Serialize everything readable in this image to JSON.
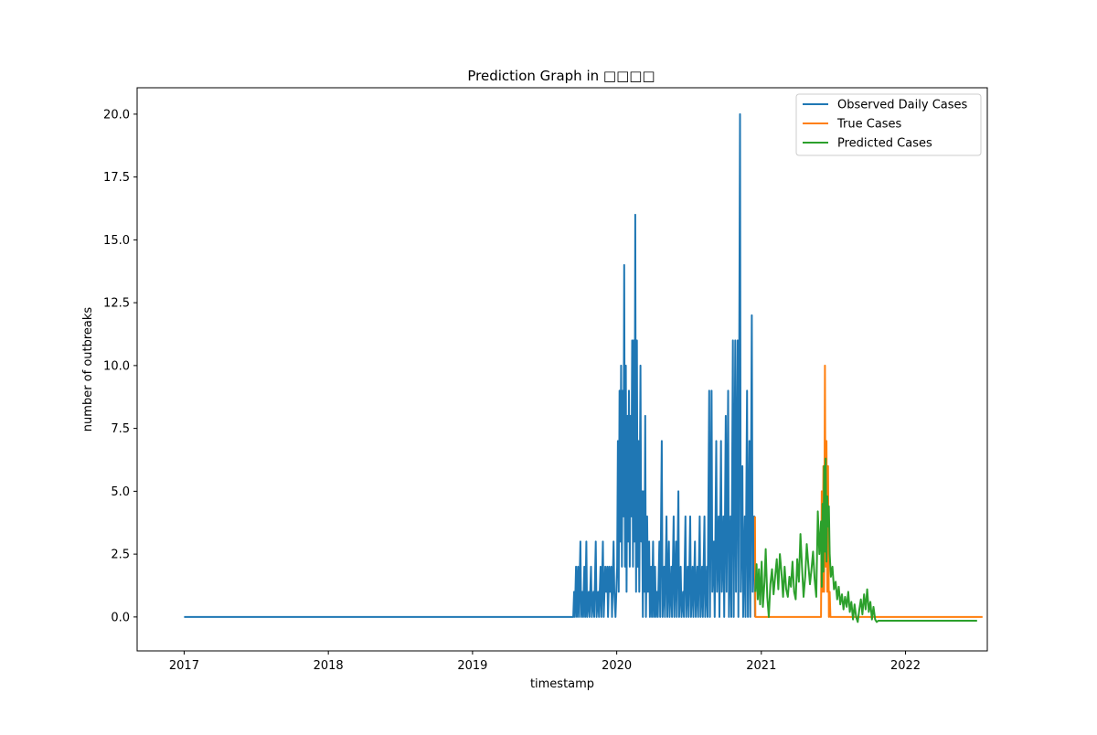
{
  "chart_data": {
    "type": "line",
    "title": "Prediction Graph in □□□□",
    "xlabel": "timestamp",
    "ylabel": "number of outbreaks",
    "xlim": [
      "2016-09-04",
      "2022-07-27"
    ],
    "ylim": [
      -1.35,
      21.05
    ],
    "x_ticks": [
      "2017",
      "2018",
      "2019",
      "2020",
      "2021",
      "2022"
    ],
    "y_ticks": [
      0.0,
      2.5,
      5.0,
      7.5,
      10.0,
      12.5,
      15.0,
      17.5,
      20.0
    ],
    "grid": false,
    "legend_position": "top-right",
    "series": [
      {
        "name": "Observed Daily Cases",
        "color": "#1f77b4",
        "points": [
          [
            "2017-01-01",
            0
          ],
          [
            "2019-09-13",
            0
          ],
          [
            "2019-09-15",
            1
          ],
          [
            "2019-09-17",
            0
          ],
          [
            "2019-09-20",
            2
          ],
          [
            "2019-09-22",
            0
          ],
          [
            "2019-09-25",
            2
          ],
          [
            "2019-09-27",
            0
          ],
          [
            "2019-10-01",
            3
          ],
          [
            "2019-10-03",
            0
          ],
          [
            "2019-10-06",
            1
          ],
          [
            "2019-10-08",
            0
          ],
          [
            "2019-10-11",
            2
          ],
          [
            "2019-10-13",
            0
          ],
          [
            "2019-10-16",
            3
          ],
          [
            "2019-10-18",
            0
          ],
          [
            "2019-10-22",
            1
          ],
          [
            "2019-10-24",
            0
          ],
          [
            "2019-10-28",
            2
          ],
          [
            "2019-10-30",
            0
          ],
          [
            "2019-11-03",
            1
          ],
          [
            "2019-11-05",
            0
          ],
          [
            "2019-11-09",
            3
          ],
          [
            "2019-11-11",
            0
          ],
          [
            "2019-11-15",
            1
          ],
          [
            "2019-11-17",
            0
          ],
          [
            "2019-11-21",
            2
          ],
          [
            "2019-11-23",
            0
          ],
          [
            "2019-11-27",
            3
          ],
          [
            "2019-11-29",
            0
          ],
          [
            "2019-12-03",
            2
          ],
          [
            "2019-12-05",
            1
          ],
          [
            "2019-12-08",
            2
          ],
          [
            "2019-12-10",
            0
          ],
          [
            "2019-12-13",
            2
          ],
          [
            "2019-12-15",
            1
          ],
          [
            "2019-12-18",
            2
          ],
          [
            "2019-12-20",
            0
          ],
          [
            "2019-12-24",
            3
          ],
          [
            "2019-12-26",
            1
          ],
          [
            "2019-12-29",
            0
          ],
          [
            "2020-01-02",
            2
          ],
          [
            "2020-01-04",
            7
          ],
          [
            "2020-01-06",
            1
          ],
          [
            "2020-01-08",
            9
          ],
          [
            "2020-01-10",
            3
          ],
          [
            "2020-01-12",
            10
          ],
          [
            "2020-01-14",
            2
          ],
          [
            "2020-01-16",
            9
          ],
          [
            "2020-01-18",
            4
          ],
          [
            "2020-01-20",
            14
          ],
          [
            "2020-01-22",
            2
          ],
          [
            "2020-01-24",
            10
          ],
          [
            "2020-01-26",
            1
          ],
          [
            "2020-01-28",
            8
          ],
          [
            "2020-01-30",
            3
          ],
          [
            "2020-02-01",
            9
          ],
          [
            "2020-02-03",
            2
          ],
          [
            "2020-02-05",
            8
          ],
          [
            "2020-02-07",
            4
          ],
          [
            "2020-02-09",
            11
          ],
          [
            "2020-02-11",
            2
          ],
          [
            "2020-02-13",
            11
          ],
          [
            "2020-02-15",
            3
          ],
          [
            "2020-02-17",
            16
          ],
          [
            "2020-02-19",
            1
          ],
          [
            "2020-02-21",
            11
          ],
          [
            "2020-02-23",
            2
          ],
          [
            "2020-02-25",
            7
          ],
          [
            "2020-02-27",
            1
          ],
          [
            "2020-03-01",
            10
          ],
          [
            "2020-03-03",
            3
          ],
          [
            "2020-03-05",
            5
          ],
          [
            "2020-03-07",
            0
          ],
          [
            "2020-03-09",
            5
          ],
          [
            "2020-03-11",
            1
          ],
          [
            "2020-03-13",
            8
          ],
          [
            "2020-03-15",
            0
          ],
          [
            "2020-03-18",
            4
          ],
          [
            "2020-03-20",
            1
          ],
          [
            "2020-03-23",
            3
          ],
          [
            "2020-03-25",
            0
          ],
          [
            "2020-03-28",
            2
          ],
          [
            "2020-03-30",
            0
          ],
          [
            "2020-04-02",
            3
          ],
          [
            "2020-04-04",
            0
          ],
          [
            "2020-04-07",
            2
          ],
          [
            "2020-04-09",
            0
          ],
          [
            "2020-04-12",
            1
          ],
          [
            "2020-04-14",
            0
          ],
          [
            "2020-04-18",
            3
          ],
          [
            "2020-04-20",
            0
          ],
          [
            "2020-04-24",
            7
          ],
          [
            "2020-04-26",
            0
          ],
          [
            "2020-04-30",
            2
          ],
          [
            "2020-05-02",
            0
          ],
          [
            "2020-05-06",
            4
          ],
          [
            "2020-05-08",
            0
          ],
          [
            "2020-05-12",
            3
          ],
          [
            "2020-05-14",
            0
          ],
          [
            "2020-05-18",
            2
          ],
          [
            "2020-05-20",
            0
          ],
          [
            "2020-05-24",
            4
          ],
          [
            "2020-05-26",
            0
          ],
          [
            "2020-05-30",
            3
          ],
          [
            "2020-06-01",
            0
          ],
          [
            "2020-06-05",
            5
          ],
          [
            "2020-06-07",
            0
          ],
          [
            "2020-06-11",
            2
          ],
          [
            "2020-06-13",
            0
          ],
          [
            "2020-06-17",
            1
          ],
          [
            "2020-06-19",
            0
          ],
          [
            "2020-06-23",
            4
          ],
          [
            "2020-06-25",
            0
          ],
          [
            "2020-06-29",
            2
          ],
          [
            "2020-07-01",
            0
          ],
          [
            "2020-07-05",
            4
          ],
          [
            "2020-07-07",
            0
          ],
          [
            "2020-07-11",
            2
          ],
          [
            "2020-07-13",
            0
          ],
          [
            "2020-07-17",
            3
          ],
          [
            "2020-07-19",
            0
          ],
          [
            "2020-07-23",
            2
          ],
          [
            "2020-07-25",
            0
          ],
          [
            "2020-07-29",
            4
          ],
          [
            "2020-07-31",
            0
          ],
          [
            "2020-08-04",
            2
          ],
          [
            "2020-08-06",
            0
          ],
          [
            "2020-08-10",
            4
          ],
          [
            "2020-08-12",
            0
          ],
          [
            "2020-08-16",
            2
          ],
          [
            "2020-08-18",
            0
          ],
          [
            "2020-08-22",
            9
          ],
          [
            "2020-08-24",
            0
          ],
          [
            "2020-08-28",
            9
          ],
          [
            "2020-08-30",
            1
          ],
          [
            "2020-09-03",
            3
          ],
          [
            "2020-09-05",
            0
          ],
          [
            "2020-09-09",
            7
          ],
          [
            "2020-09-11",
            1
          ],
          [
            "2020-09-15",
            4
          ],
          [
            "2020-09-17",
            0
          ],
          [
            "2020-09-21",
            7
          ],
          [
            "2020-09-23",
            1
          ],
          [
            "2020-09-27",
            4
          ],
          [
            "2020-09-29",
            0
          ],
          [
            "2020-10-03",
            8
          ],
          [
            "2020-10-05",
            1
          ],
          [
            "2020-10-09",
            9
          ],
          [
            "2020-10-11",
            0
          ],
          [
            "2020-10-15",
            4
          ],
          [
            "2020-10-17",
            0
          ],
          [
            "2020-10-21",
            11
          ],
          [
            "2020-10-23",
            0
          ],
          [
            "2020-10-27",
            11
          ],
          [
            "2020-10-29",
            1
          ],
          [
            "2020-11-02",
            11
          ],
          [
            "2020-11-04",
            0
          ],
          [
            "2020-11-08",
            20
          ],
          [
            "2020-11-10",
            1
          ],
          [
            "2020-11-14",
            6
          ],
          [
            "2020-11-16",
            0
          ],
          [
            "2020-11-20",
            4
          ],
          [
            "2020-11-22",
            0
          ],
          [
            "2020-11-26",
            9
          ],
          [
            "2020-11-28",
            0
          ],
          [
            "2020-12-02",
            7
          ],
          [
            "2020-12-04",
            0
          ],
          [
            "2020-12-08",
            12
          ],
          [
            "2020-12-10",
            1
          ],
          [
            "2020-12-14",
            4
          ],
          [
            "2020-12-16",
            0
          ]
        ]
      },
      {
        "name": "True Cases",
        "color": "#ff7f0e",
        "points": [
          [
            "2020-12-16",
            4
          ],
          [
            "2020-12-17",
            0
          ],
          [
            "2021-06-01",
            0
          ],
          [
            "2021-06-03",
            5
          ],
          [
            "2021-06-05",
            1
          ],
          [
            "2021-06-07",
            6
          ],
          [
            "2021-06-09",
            1
          ],
          [
            "2021-06-11",
            10
          ],
          [
            "2021-06-13",
            2
          ],
          [
            "2021-06-15",
            7
          ],
          [
            "2021-06-17",
            1
          ],
          [
            "2021-06-19",
            6
          ],
          [
            "2021-06-21",
            0
          ],
          [
            "2021-06-23",
            1
          ],
          [
            "2021-06-25",
            0
          ],
          [
            "2022-07-15",
            0
          ]
        ]
      },
      {
        "name": "Predicted Cases",
        "color": "#2ca02c",
        "points": [
          [
            "2020-12-17",
            1.0
          ],
          [
            "2020-12-20",
            2.1
          ],
          [
            "2020-12-23",
            0.7
          ],
          [
            "2020-12-26",
            1.9
          ],
          [
            "2020-12-29",
            0.5
          ],
          [
            "2021-01-02",
            2.2
          ],
          [
            "2021-01-05",
            0.4
          ],
          [
            "2021-01-09",
            1.4
          ],
          [
            "2021-01-12",
            2.7
          ],
          [
            "2021-01-16",
            0.8
          ],
          [
            "2021-01-20",
            0.0
          ],
          [
            "2021-01-24",
            1.3
          ],
          [
            "2021-01-28",
            1.9
          ],
          [
            "2021-02-01",
            0.9
          ],
          [
            "2021-02-05",
            1.6
          ],
          [
            "2021-02-09",
            2.3
          ],
          [
            "2021-02-13",
            1.1
          ],
          [
            "2021-02-17",
            2.5
          ],
          [
            "2021-02-21",
            1.8
          ],
          [
            "2021-02-25",
            0.8
          ],
          [
            "2021-03-01",
            2.0
          ],
          [
            "2021-03-05",
            1.1
          ],
          [
            "2021-03-09",
            0.8
          ],
          [
            "2021-03-13",
            1.6
          ],
          [
            "2021-03-17",
            1.2
          ],
          [
            "2021-03-21",
            2.2
          ],
          [
            "2021-03-25",
            1.0
          ],
          [
            "2021-03-29",
            0.7
          ],
          [
            "2021-04-02",
            2.3
          ],
          [
            "2021-04-06",
            1.4
          ],
          [
            "2021-04-10",
            3.3
          ],
          [
            "2021-04-14",
            2.0
          ],
          [
            "2021-04-18",
            0.8
          ],
          [
            "2021-04-22",
            1.6
          ],
          [
            "2021-04-26",
            2.9
          ],
          [
            "2021-04-30",
            2.1
          ],
          [
            "2021-05-04",
            1.3
          ],
          [
            "2021-05-08",
            1.9
          ],
          [
            "2021-05-12",
            2.6
          ],
          [
            "2021-05-16",
            1.5
          ],
          [
            "2021-05-20",
            0.8
          ],
          [
            "2021-05-24",
            4.2
          ],
          [
            "2021-05-28",
            2.5
          ],
          [
            "2021-06-01",
            3.8
          ],
          [
            "2021-06-03",
            1.2
          ],
          [
            "2021-06-05",
            4.5
          ],
          [
            "2021-06-07",
            1.8
          ],
          [
            "2021-06-09",
            6.0
          ],
          [
            "2021-06-11",
            2.6
          ],
          [
            "2021-06-13",
            6.3
          ],
          [
            "2021-06-15",
            2.2
          ],
          [
            "2021-06-17",
            4.8
          ],
          [
            "2021-06-19",
            3.6
          ],
          [
            "2021-06-21",
            4.4
          ],
          [
            "2021-06-23",
            2.5
          ],
          [
            "2021-06-26",
            1.6
          ],
          [
            "2021-06-30",
            2.0
          ],
          [
            "2021-07-04",
            1.1
          ],
          [
            "2021-07-08",
            1.4
          ],
          [
            "2021-07-12",
            0.7
          ],
          [
            "2021-07-16",
            1.2
          ],
          [
            "2021-07-20",
            0.5
          ],
          [
            "2021-07-24",
            0.9
          ],
          [
            "2021-07-28",
            0.3
          ],
          [
            "2021-08-01",
            0.8
          ],
          [
            "2021-08-05",
            0.4
          ],
          [
            "2021-08-09",
            1.0
          ],
          [
            "2021-08-13",
            0.2
          ],
          [
            "2021-08-17",
            0.6
          ],
          [
            "2021-08-21",
            -0.1
          ],
          [
            "2021-08-25",
            0.5
          ],
          [
            "2021-08-29",
            0.0
          ],
          [
            "2021-09-02",
            -0.2
          ],
          [
            "2021-09-06",
            0.3
          ],
          [
            "2021-09-10",
            0.7
          ],
          [
            "2021-09-14",
            0.1
          ],
          [
            "2021-09-18",
            0.9
          ],
          [
            "2021-09-22",
            0.3
          ],
          [
            "2021-09-26",
            1.1
          ],
          [
            "2021-09-30",
            0.2
          ],
          [
            "2021-10-04",
            0.6
          ],
          [
            "2021-10-08",
            -0.1
          ],
          [
            "2021-10-12",
            0.4
          ],
          [
            "2021-10-16",
            -0.1
          ],
          [
            "2021-10-20",
            -0.2
          ],
          [
            "2021-10-24",
            -0.15
          ],
          [
            "2021-11-15",
            -0.15
          ],
          [
            "2022-07-01",
            -0.15
          ]
        ]
      }
    ]
  }
}
